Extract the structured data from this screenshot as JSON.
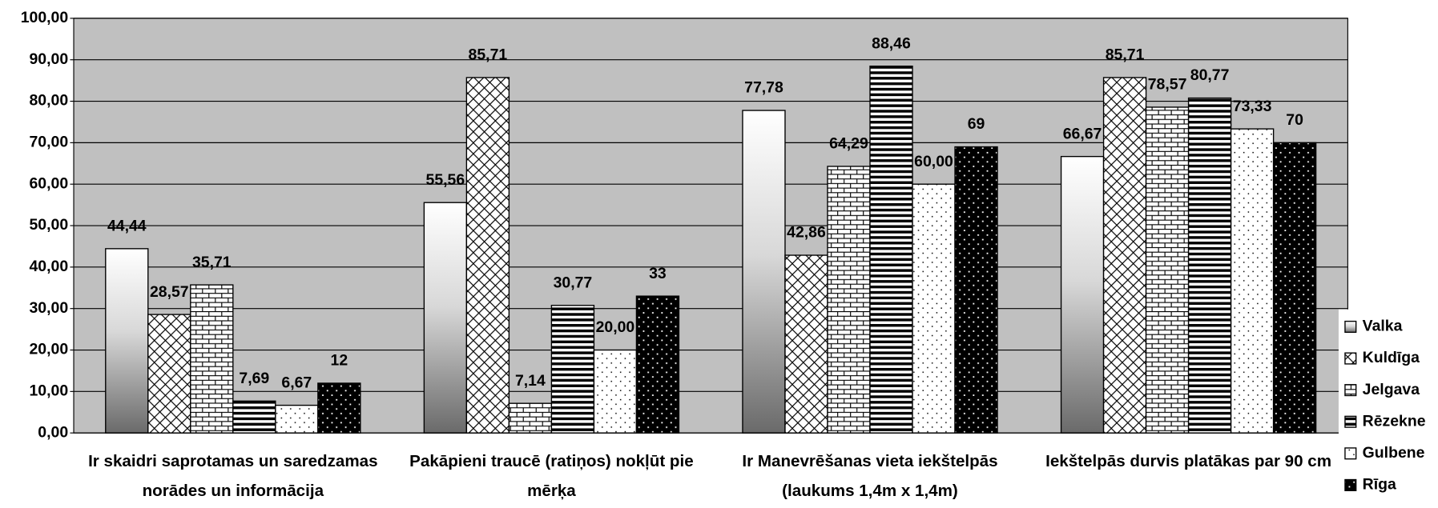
{
  "chart_data": {
    "type": "bar",
    "categories": [
      [
        "Ir skaidri saprotamas un saredzamas",
        "norādes un informācija"
      ],
      [
        "Pakāpieni traucē (ratiņos) nokļūt pie",
        "mērķa"
      ],
      [
        "Ir Manevrēšanas vieta iekštelpās",
        "(laukums 1,4m x 1,4m)"
      ],
      [
        "Iekštelpās durvis platākas par 90 cm"
      ]
    ],
    "series": [
      {
        "name": "Valka",
        "values": [
          44.44,
          55.56,
          77.78,
          66.67
        ],
        "value_labels": [
          "44,44",
          "55,56",
          "77,78",
          "66,67"
        ]
      },
      {
        "name": "Kuldīga",
        "values": [
          28.57,
          85.71,
          42.86,
          85.71
        ],
        "value_labels": [
          "28,57",
          "85,71",
          "42,86",
          "85,71"
        ]
      },
      {
        "name": "Jelgava",
        "values": [
          35.71,
          7.14,
          64.29,
          78.57
        ],
        "value_labels": [
          "35,71",
          "7,14",
          "64,29",
          "78,57"
        ]
      },
      {
        "name": "Rēzekne",
        "values": [
          7.69,
          30.77,
          88.46,
          80.77
        ],
        "value_labels": [
          "7,69",
          "30,77",
          "88,46",
          "80,77"
        ]
      },
      {
        "name": "Gulbene",
        "values": [
          6.67,
          20.0,
          60.0,
          73.33
        ],
        "value_labels": [
          "6,67",
          "20,00",
          "60,00",
          "73,33"
        ]
      },
      {
        "name": "Rīga",
        "values": [
          12,
          33,
          69,
          70
        ]
      }
    ],
    "ylim": [
      0,
      100
    ],
    "yticks": [
      {
        "value": 0,
        "label": "0,00"
      },
      {
        "value": 10,
        "label": "10,00"
      },
      {
        "value": 20,
        "label": "20,00"
      },
      {
        "value": 30,
        "label": "30,00"
      },
      {
        "value": 40,
        "label": "40,00"
      },
      {
        "value": 50,
        "label": "50,00"
      },
      {
        "value": 60,
        "label": "60,00"
      },
      {
        "value": 70,
        "label": "70,00"
      },
      {
        "value": 80,
        "label": "80,00"
      },
      {
        "value": 90,
        "label": "90,00"
      },
      {
        "value": 100,
        "label": "100,00"
      }
    ],
    "grid": true,
    "legend": "right"
  }
}
